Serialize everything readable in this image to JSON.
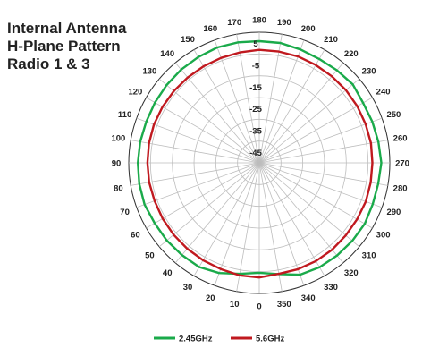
{
  "chart_data": {
    "type": "polar-line",
    "title_lines": [
      "Internal Antenna",
      "H-Plane Pattern",
      "Radio 1 & 3"
    ],
    "angle_labels": [
      "180",
      "190",
      "200",
      "210",
      "220",
      "230",
      "240",
      "250",
      "260",
      "270",
      "280",
      "290",
      "300",
      "310",
      "320",
      "330",
      "340",
      "350",
      "0",
      "10",
      "20",
      "30",
      "40",
      "50",
      "60",
      "70",
      "80",
      "90",
      "100",
      "110",
      "120",
      "130",
      "140",
      "150",
      "160",
      "170"
    ],
    "angle_step": 10,
    "radial_labels": [
      "5",
      "-5",
      "-15",
      "-25",
      "-35",
      "-45"
    ],
    "radial_range": [
      -50,
      10
    ],
    "series": [
      {
        "name": "2.45GHz",
        "color": "#1aaa4a",
        "values": [
          5.9,
          5.9,
          5.4,
          5.1,
          5.5,
          6.1,
          5.1,
          5.3,
          5.6,
          6.1,
          5.5,
          5.5,
          6.0,
          5.8,
          5.6,
          5.4,
          4.7,
          1.9,
          0.5,
          1.8,
          3.9,
          5.3,
          5.3,
          5.5,
          5.5,
          6.1,
          6.0,
          5.8,
          5.6,
          5.3,
          5.4,
          5.6,
          5.9,
          6.1,
          6.4,
          6.2
        ]
      },
      {
        "name": "5.6GHz",
        "color": "#c0191f",
        "values": [
          1.9,
          1.9,
          2.0,
          1.9,
          1.9,
          2.0,
          2.0,
          2.0,
          2.1,
          2.0,
          2.0,
          2.1,
          1.9,
          1.9,
          2.1,
          2.1,
          2.0,
          1.8,
          2.7,
          2.5,
          1.9,
          1.7,
          1.5,
          1.4,
          1.3,
          1.2,
          1.4,
          1.4,
          1.5,
          1.5,
          1.4,
          1.3,
          1.2,
          1.2,
          1.3,
          1.5
        ]
      }
    ],
    "legend_position": "bottom",
    "grid": true
  }
}
